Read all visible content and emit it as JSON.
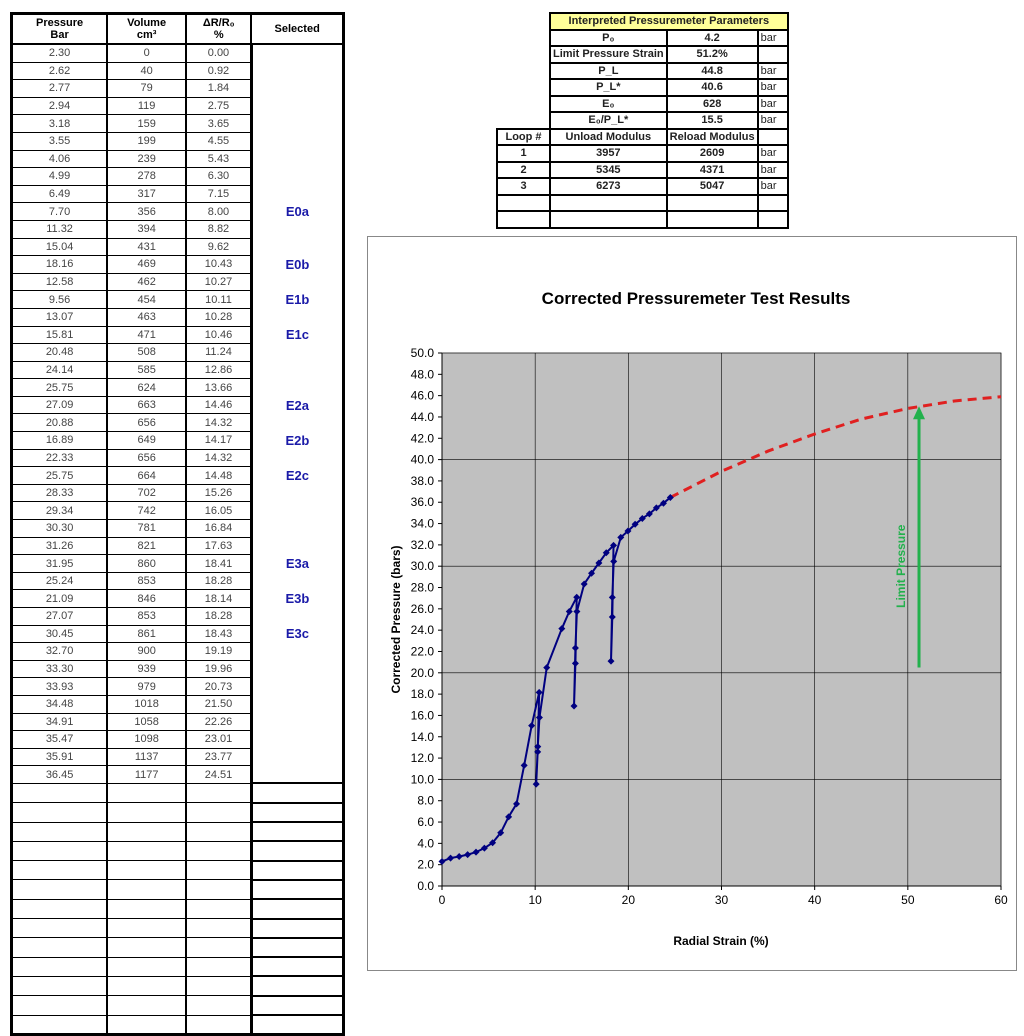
{
  "data_table": {
    "headers": [
      [
        "Pressure",
        "Bar"
      ],
      [
        "Volume",
        "cm³"
      ],
      [
        "ΔR/R₀",
        "%"
      ],
      [
        "Selected",
        ""
      ]
    ],
    "rows": [
      [
        "2.30",
        "0",
        "0.00",
        ""
      ],
      [
        "2.62",
        "40",
        "0.92",
        ""
      ],
      [
        "2.77",
        "79",
        "1.84",
        ""
      ],
      [
        "2.94",
        "119",
        "2.75",
        ""
      ],
      [
        "3.18",
        "159",
        "3.65",
        ""
      ],
      [
        "3.55",
        "199",
        "4.55",
        ""
      ],
      [
        "4.06",
        "239",
        "5.43",
        ""
      ],
      [
        "4.99",
        "278",
        "6.30",
        ""
      ],
      [
        "6.49",
        "317",
        "7.15",
        ""
      ],
      [
        "7.70",
        "356",
        "8.00",
        "E0a"
      ],
      [
        "11.32",
        "394",
        "8.82",
        ""
      ],
      [
        "15.04",
        "431",
        "9.62",
        ""
      ],
      [
        "18.16",
        "469",
        "10.43",
        "E0b"
      ],
      [
        "12.58",
        "462",
        "10.27",
        ""
      ],
      [
        "9.56",
        "454",
        "10.11",
        "E1b"
      ],
      [
        "13.07",
        "463",
        "10.28",
        ""
      ],
      [
        "15.81",
        "471",
        "10.46",
        "E1c"
      ],
      [
        "20.48",
        "508",
        "11.24",
        ""
      ],
      [
        "24.14",
        "585",
        "12.86",
        ""
      ],
      [
        "25.75",
        "624",
        "13.66",
        ""
      ],
      [
        "27.09",
        "663",
        "14.46",
        "E2a"
      ],
      [
        "20.88",
        "656",
        "14.32",
        ""
      ],
      [
        "16.89",
        "649",
        "14.17",
        "E2b"
      ],
      [
        "22.33",
        "656",
        "14.32",
        ""
      ],
      [
        "25.75",
        "664",
        "14.48",
        "E2c"
      ],
      [
        "28.33",
        "702",
        "15.26",
        ""
      ],
      [
        "29.34",
        "742",
        "16.05",
        ""
      ],
      [
        "30.30",
        "781",
        "16.84",
        ""
      ],
      [
        "31.26",
        "821",
        "17.63",
        ""
      ],
      [
        "31.95",
        "860",
        "18.41",
        "E3a"
      ],
      [
        "25.24",
        "853",
        "18.28",
        ""
      ],
      [
        "21.09",
        "846",
        "18.14",
        "E3b"
      ],
      [
        "27.07",
        "853",
        "18.28",
        ""
      ],
      [
        "30.45",
        "861",
        "18.43",
        "E3c"
      ],
      [
        "32.70",
        "900",
        "19.19",
        ""
      ],
      [
        "33.30",
        "939",
        "19.96",
        ""
      ],
      [
        "33.93",
        "979",
        "20.73",
        ""
      ],
      [
        "34.48",
        "1018",
        "21.50",
        ""
      ],
      [
        "34.91",
        "1058",
        "22.26",
        ""
      ],
      [
        "35.47",
        "1098",
        "23.01",
        ""
      ],
      [
        "35.91",
        "1137",
        "23.77",
        ""
      ],
      [
        "36.45",
        "1177",
        "24.51",
        ""
      ]
    ],
    "empty_rows": 13
  },
  "parameters": {
    "title": "Interpreted Pressuremeter Parameters",
    "items": [
      {
        "label": "P₀",
        "value": "4.2",
        "unit": "bar"
      },
      {
        "label": "Limit Pressure Strain",
        "value": "51.2%",
        "unit": ""
      },
      {
        "label": "P_L",
        "value": "44.8",
        "unit": "bar"
      },
      {
        "label": "P_L*",
        "value": "40.6",
        "unit": "bar"
      },
      {
        "label": "E₀",
        "value": "628",
        "unit": "bar"
      },
      {
        "label": "E₀/P_L*",
        "value": "15.5",
        "unit": "bar"
      }
    ],
    "loop_headers": [
      "Loop #",
      "Unload Modulus",
      "Reload Modulus"
    ],
    "loops": [
      {
        "loop": "1",
        "unload": "3957",
        "reload": "2609",
        "unit": "bar"
      },
      {
        "loop": "2",
        "unload": "5345",
        "reload": "4371",
        "unit": "bar"
      },
      {
        "loop": "3",
        "unload": "6273",
        "reload": "5047",
        "unit": "bar"
      }
    ]
  },
  "chart_data": {
    "type": "line",
    "title": "Corrected Pressuremeter Test Results",
    "xlabel": "Radial Strain (%)",
    "ylabel": "Corrected Pressure (bars)",
    "xlim": [
      0,
      60
    ],
    "ylim": [
      0,
      50
    ],
    "xticks": [
      "0",
      "10",
      "20",
      "30",
      "40",
      "50",
      "60"
    ],
    "yticks": [
      "0.0",
      "2.0",
      "4.0",
      "6.0",
      "8.0",
      "10.0",
      "12.0",
      "14.0",
      "16.0",
      "18.0",
      "20.0",
      "22.0",
      "24.0",
      "26.0",
      "28.0",
      "30.0",
      "32.0",
      "34.0",
      "36.0",
      "38.0",
      "40.0",
      "42.0",
      "44.0",
      "46.0",
      "48.0",
      "50.0"
    ],
    "grid": true,
    "plot_background": "#c0c0c0",
    "series": [
      {
        "style": "measured",
        "color": "#000080",
        "points": [
          [
            0,
            2.3
          ],
          [
            0.92,
            2.62
          ],
          [
            1.84,
            2.77
          ],
          [
            2.75,
            2.94
          ],
          [
            3.65,
            3.18
          ],
          [
            4.55,
            3.55
          ],
          [
            5.43,
            4.06
          ],
          [
            6.3,
            4.99
          ],
          [
            7.15,
            6.49
          ],
          [
            8.0,
            7.7
          ],
          [
            8.82,
            11.32
          ],
          [
            9.62,
            15.04
          ],
          [
            10.43,
            18.16
          ],
          [
            10.27,
            12.58
          ],
          [
            10.11,
            9.56
          ],
          [
            10.28,
            13.07
          ],
          [
            10.46,
            15.81
          ],
          [
            11.24,
            20.48
          ],
          [
            12.86,
            24.14
          ],
          [
            13.66,
            25.75
          ],
          [
            14.46,
            27.09
          ],
          [
            14.32,
            20.88
          ],
          [
            14.17,
            16.89
          ],
          [
            14.32,
            22.33
          ],
          [
            14.48,
            25.75
          ],
          [
            15.26,
            28.33
          ],
          [
            16.05,
            29.34
          ],
          [
            16.84,
            30.3
          ],
          [
            17.63,
            31.26
          ],
          [
            18.41,
            31.95
          ],
          [
            18.28,
            25.24
          ],
          [
            18.14,
            21.09
          ],
          [
            18.28,
            27.07
          ],
          [
            18.43,
            30.45
          ],
          [
            19.19,
            32.7
          ],
          [
            19.96,
            33.3
          ],
          [
            20.73,
            33.93
          ],
          [
            21.5,
            34.48
          ],
          [
            22.26,
            34.91
          ],
          [
            23.01,
            35.47
          ],
          [
            23.77,
            35.91
          ],
          [
            24.51,
            36.45
          ]
        ]
      },
      {
        "style": "extrapolated",
        "color": "#e02020",
        "points": [
          [
            24.51,
            36.45
          ],
          [
            30,
            38.9
          ],
          [
            35,
            40.8
          ],
          [
            40,
            42.4
          ],
          [
            45,
            43.8
          ],
          [
            50,
            44.8
          ],
          [
            55,
            45.5
          ],
          [
            60,
            45.9
          ]
        ]
      }
    ],
    "annotation": {
      "text": "Limit Pressure",
      "color": "#22b14c",
      "x": 51.2,
      "y_from": 20.5,
      "y_to": 45
    }
  }
}
